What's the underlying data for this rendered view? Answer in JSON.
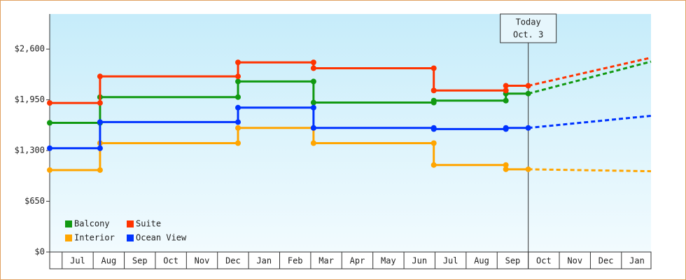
{
  "chart_data": {
    "type": "step-line",
    "xlim": [
      -0.4,
      18.95
    ],
    "xticks": [
      {
        "value": 0.5,
        "label": "Jul"
      },
      {
        "value": 1.5,
        "label": "Aug"
      },
      {
        "value": 2.5,
        "label": "Sep"
      },
      {
        "value": 3.5,
        "label": "Oct"
      },
      {
        "value": 4.5,
        "label": "Nov"
      },
      {
        "value": 5.5,
        "label": "Dec"
      },
      {
        "value": 6.5,
        "label": "Jan"
      },
      {
        "value": 7.5,
        "label": "Feb"
      },
      {
        "value": 8.5,
        "label": "Mar"
      },
      {
        "value": 9.5,
        "label": "Apr"
      },
      {
        "value": 10.5,
        "label": "May"
      },
      {
        "value": 11.5,
        "label": "Jun"
      },
      {
        "value": 12.5,
        "label": "Jul"
      },
      {
        "value": 13.5,
        "label": "Aug"
      },
      {
        "value": 14.5,
        "label": "Sep"
      },
      {
        "value": 15.5,
        "label": "Oct"
      },
      {
        "value": 16.5,
        "label": "Nov"
      },
      {
        "value": 17.5,
        "label": "Dec"
      },
      {
        "value": 18.5,
        "label": "Jan"
      }
    ],
    "ylim": [
      0,
      3050
    ],
    "yticks": [
      {
        "value": 0,
        "label": "$0"
      },
      {
        "value": 650,
        "label": "$650"
      },
      {
        "value": 1300,
        "label": "$1,300"
      },
      {
        "value": 1950,
        "label": "$1,950"
      },
      {
        "value": 2600,
        "label": "$2,600"
      }
    ],
    "annotation": {
      "x": 15,
      "lines": [
        "Today",
        "Oct. 3"
      ]
    },
    "series": [
      {
        "name": "Balcony",
        "color": "#119911",
        "x": [
          -0.4,
          1.22,
          1.22,
          5.66,
          5.66,
          8.09,
          8.09,
          11.96,
          11.96,
          14.28,
          14.28,
          15
        ],
        "values": [
          1655,
          1655,
          1985,
          1985,
          2185,
          2185,
          1915,
          1915,
          1940,
          1940,
          2030,
          2030
        ],
        "forecast_x": [
          15,
          18.95
        ],
        "forecast_values": [
          2030,
          2440
        ]
      },
      {
        "name": "Suite",
        "color": "#ff3300",
        "x": [
          -0.4,
          1.22,
          1.22,
          5.66,
          5.66,
          8.09,
          8.09,
          11.96,
          11.96,
          14.28,
          14.28,
          15
        ],
        "values": [
          1910,
          1910,
          2250,
          2250,
          2430,
          2430,
          2355,
          2355,
          2070,
          2070,
          2130,
          2130
        ],
        "forecast_x": [
          15,
          18.95
        ],
        "forecast_values": [
          2130,
          2490
        ]
      },
      {
        "name": "Interior",
        "color": "#ffa500",
        "x": [
          -0.4,
          1.22,
          1.22,
          5.66,
          5.66,
          8.09,
          8.09,
          11.96,
          11.96,
          14.28,
          14.28,
          15
        ],
        "values": [
          1050,
          1050,
          1395,
          1395,
          1590,
          1590,
          1395,
          1395,
          1115,
          1115,
          1060,
          1060
        ],
        "forecast_x": [
          15,
          18.95
        ],
        "forecast_values": [
          1060,
          1035
        ]
      },
      {
        "name": "Ocean View",
        "color": "#0033ff",
        "x": [
          -0.4,
          1.22,
          1.22,
          5.66,
          5.66,
          8.09,
          8.09,
          11.96,
          11.96,
          14.28,
          14.28,
          15
        ],
        "values": [
          1330,
          1330,
          1665,
          1665,
          1850,
          1850,
          1590,
          1590,
          1575,
          1575,
          1590,
          1590
        ],
        "forecast_x": [
          15,
          18.95
        ],
        "forecast_values": [
          1590,
          1745
        ]
      }
    ]
  }
}
